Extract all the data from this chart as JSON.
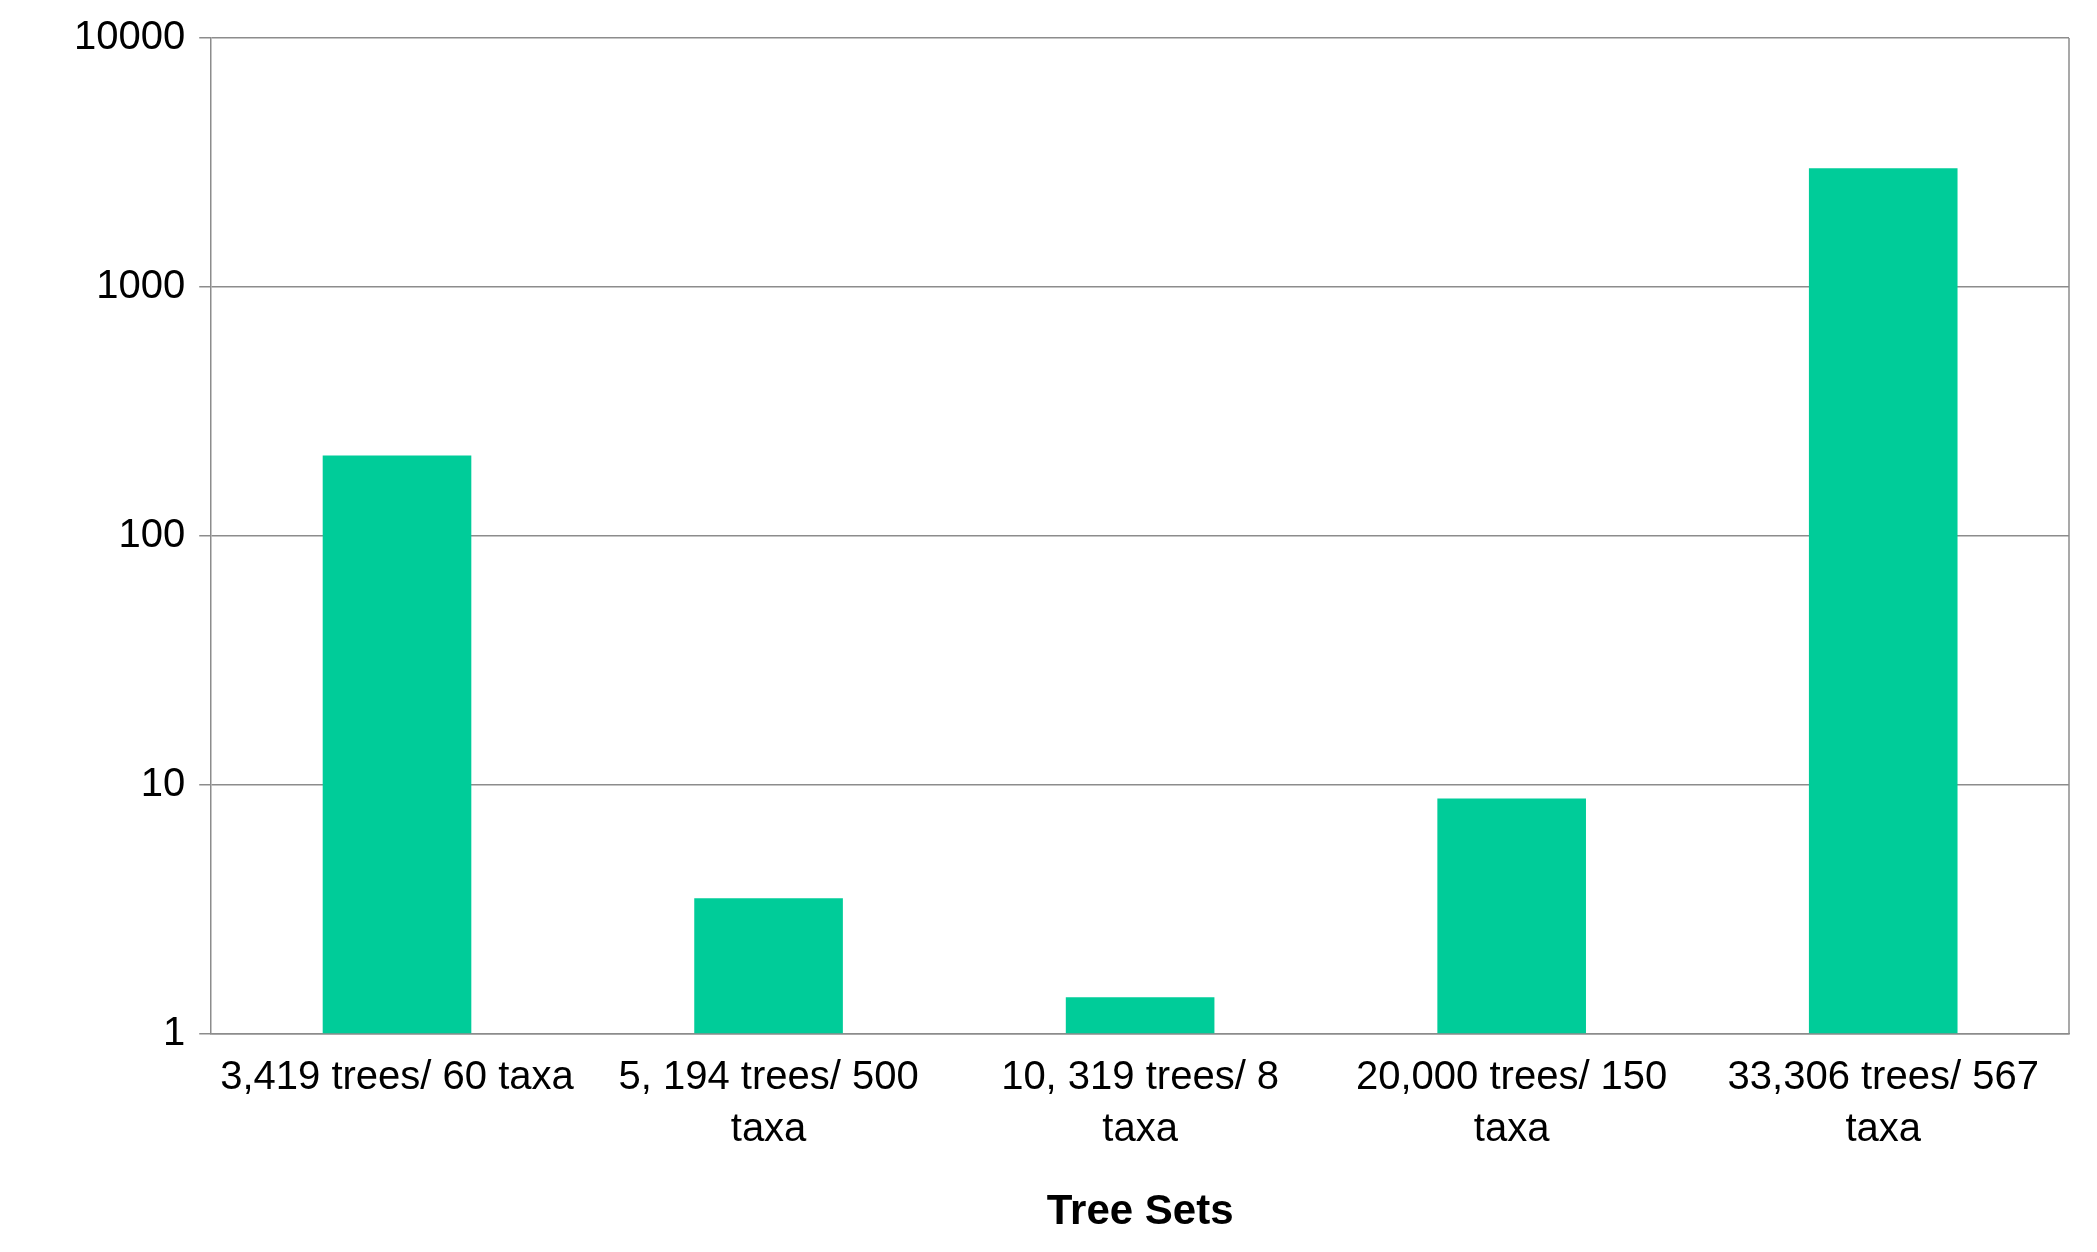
{
  "chart_data": {
    "type": "bar",
    "xlabel": "Tree Sets",
    "categories": [
      "3,419 trees/ 60 taxa",
      "5, 194 trees/ 500 taxa",
      "10, 319 trees/ 8 taxa",
      "20,000 trees/ 150 taxa",
      "33,306 trees/ 567 taxa"
    ],
    "values": [
      210,
      3.5,
      1.4,
      8.8,
      3000
    ],
    "color": "#00cc99",
    "log": true,
    "ylim": [
      1,
      10000
    ],
    "yticks": [
      1,
      10,
      100,
      1000,
      10000
    ],
    "grid": "y",
    "legend": false
  }
}
